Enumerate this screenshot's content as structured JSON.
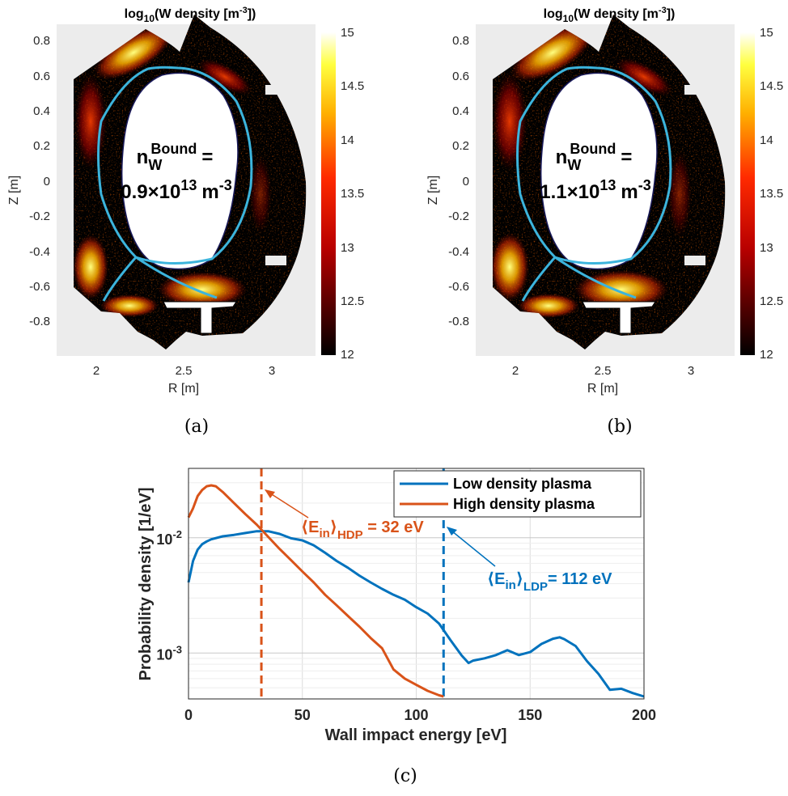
{
  "panels": [
    {
      "caption": "(a)",
      "title_main": "log",
      "title_sub": "10",
      "title_rest": "(W density [m",
      "title_sup": "-3",
      "title_end": "])",
      "xlabel": "R [m]",
      "ylabel": "Z [m]",
      "xticks": [
        "2",
        "2.5",
        "3"
      ],
      "yticks": [
        "0.8",
        "0.6",
        "0.4",
        "0.2",
        "0",
        "-0.2",
        "-0.4",
        "-0.6",
        "-0.8"
      ],
      "colorbar_ticks": [
        "15",
        "14.5",
        "14",
        "13.5",
        "13",
        "12.5",
        "12"
      ],
      "annotation": {
        "symbol": "n",
        "subscript": "W",
        "superscript": "Bound",
        "equals": "=",
        "mantissa": "0.9",
        "times": "×",
        "base": "10",
        "exponent": "13",
        "unit": "m",
        "unit_exp": "-3"
      }
    },
    {
      "caption": "(b)",
      "title_main": "log",
      "title_sub": "10",
      "title_rest": "(W density [m",
      "title_sup": "-3",
      "title_end": "])",
      "xlabel": "R [m]",
      "ylabel": "Z [m]",
      "xticks": [
        "2",
        "2.5",
        "3"
      ],
      "yticks": [
        "0.8",
        "0.6",
        "0.4",
        "0.2",
        "0",
        "-0.2",
        "-0.4",
        "-0.6",
        "-0.8"
      ],
      "colorbar_ticks": [
        "15",
        "14.5",
        "14",
        "13.5",
        "13",
        "12.5",
        "12"
      ],
      "annotation": {
        "symbol": "n",
        "subscript": "W",
        "superscript": "Bound",
        "equals": "=",
        "mantissa": "1.1",
        "times": "×",
        "base": "10",
        "exponent": "13",
        "unit": "m",
        "unit_exp": "-3"
      }
    }
  ],
  "colors": {
    "separatrix": "#3cb4dc",
    "ldp": "#0072bd",
    "hdp": "#d95319",
    "grid": "#dcdcdc"
  },
  "chart_data": [
    {
      "type": "heatmap",
      "panel": "a",
      "title": "log10(W density [m-3])",
      "xlabel": "R [m]",
      "ylabel": "Z [m]",
      "xlim": [
        1.77,
        3.25
      ],
      "ylim": [
        -0.95,
        0.86
      ],
      "clim": [
        12,
        15
      ],
      "colormap": "hot"
    },
    {
      "type": "heatmap",
      "panel": "b",
      "title": "log10(W density [m-3])",
      "xlabel": "R [m]",
      "ylabel": "Z [m]",
      "xlim": [
        1.77,
        3.25
      ],
      "ylim": [
        -0.95,
        0.86
      ],
      "clim": [
        12,
        15
      ],
      "colormap": "hot"
    },
    {
      "type": "line",
      "panel": "c",
      "caption": "(c)",
      "xlabel": "Wall impact energy [eV]",
      "ylabel": "Probability density [1/eV]",
      "xlim": [
        0,
        200
      ],
      "ylim": [
        0.0004,
        0.04
      ],
      "yscale": "log",
      "xticks": [
        "0",
        "50",
        "100",
        "150",
        "200"
      ],
      "ytick_base": "10",
      "ytick_exps": [
        "-2",
        "-3"
      ],
      "grid": true,
      "legend_position": "top-right",
      "series": [
        {
          "name": "Low density plasma",
          "color": "#0072bd",
          "x": [
            0,
            2,
            4,
            6,
            8,
            10,
            15,
            20,
            25,
            30,
            35,
            40,
            45,
            50,
            55,
            60,
            65,
            70,
            75,
            80,
            85,
            90,
            95,
            100,
            105,
            110,
            115,
            120,
            123,
            125,
            130,
            135,
            140,
            145,
            150,
            155,
            160,
            163,
            165,
            170,
            175,
            180,
            185,
            190,
            195,
            200
          ],
          "y": [
            0.0041,
            0.0063,
            0.0079,
            0.0088,
            0.0093,
            0.0097,
            0.0103,
            0.0106,
            0.011,
            0.0114,
            0.0114,
            0.0108,
            0.0099,
            0.0095,
            0.0086,
            0.0074,
            0.0063,
            0.0055,
            0.0047,
            0.0041,
            0.0036,
            0.0032,
            0.0029,
            0.0025,
            0.0022,
            0.0018,
            0.0013,
            0.00095,
            0.00082,
            0.00086,
            0.0009,
            0.00096,
            0.00106,
            0.00096,
            0.00102,
            0.0012,
            0.00133,
            0.00137,
            0.00132,
            0.00115,
            0.00085,
            0.00066,
            0.00048,
            0.00049,
            0.00045,
            0.00042
          ]
        },
        {
          "name": "High density plasma",
          "color": "#d95319",
          "x": [
            0,
            2,
            4,
            6,
            8,
            10,
            12,
            15,
            20,
            25,
            30,
            35,
            40,
            45,
            50,
            55,
            60,
            65,
            70,
            75,
            80,
            85,
            90,
            95,
            100,
            105,
            110,
            112
          ],
          "y": [
            0.015,
            0.018,
            0.023,
            0.026,
            0.028,
            0.0285,
            0.028,
            0.025,
            0.02,
            0.016,
            0.013,
            0.0102,
            0.008,
            0.0064,
            0.0051,
            0.0041,
            0.0032,
            0.0026,
            0.0021,
            0.0017,
            0.00135,
            0.0011,
            0.00072,
            0.0006,
            0.00053,
            0.00047,
            0.00043,
            0.00042
          ]
        }
      ],
      "vlines": [
        {
          "x": 32,
          "color": "#d95319"
        },
        {
          "x": 112,
          "color": "#0072bd"
        }
      ],
      "annotations": [
        {
          "open": "⟨",
          "main": "E",
          "sub1": "in",
          "close": "⟩",
          "sub2": "HDP",
          "value": " = 32 eV",
          "color": "#d95319"
        },
        {
          "open": "⟨",
          "main": "E",
          "sub1": "in",
          "close": "⟩",
          "sub2": "LDP",
          "value": "= 112 eV",
          "color": "#0072bd"
        }
      ]
    }
  ]
}
